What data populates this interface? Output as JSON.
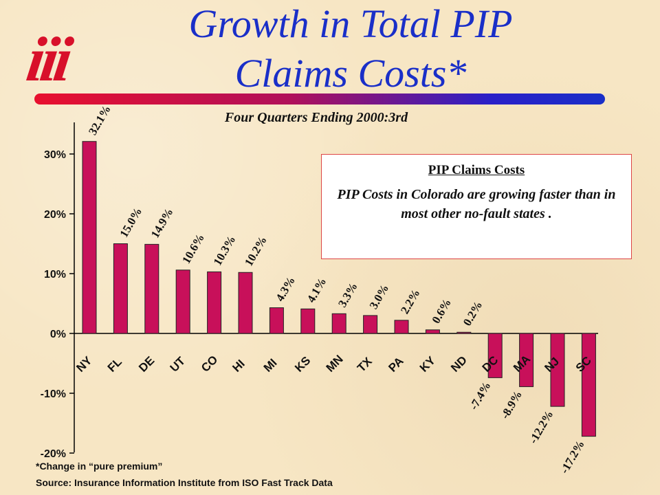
{
  "logo": {
    "text": "iii"
  },
  "title": {
    "line1": "Growth in Total PIP",
    "line2": "Claims Costs*"
  },
  "colors": {
    "bar": "#c8105a",
    "title": "#1a2fc8",
    "logo": "#d8102a",
    "background": "#f7e6c4"
  },
  "callout": {
    "heading": "PIP Claims Costs",
    "body": "PIP Costs in Colorado are growing faster than in most other no-fault states ."
  },
  "footnote": "*Change in “pure premium”",
  "source": "Source:  Insurance Information Institute from ISO Fast Track Data",
  "chart_data": {
    "type": "bar",
    "title": "Four Quarters Ending 2000:3rd",
    "xlabel": "",
    "ylabel": "",
    "categories": [
      "NY",
      "FL",
      "DE",
      "UT",
      "CO",
      "HI",
      "MI",
      "KS",
      "MN",
      "TX",
      "PA",
      "KY",
      "ND",
      "DC",
      "MA",
      "NJ",
      "SC"
    ],
    "values": [
      32.1,
      15.0,
      14.9,
      10.6,
      10.3,
      10.2,
      4.3,
      4.1,
      3.3,
      3.0,
      2.2,
      0.6,
      0.2,
      -7.4,
      -8.9,
      -12.2,
      -17.2
    ],
    "value_labels": [
      "32.1%",
      "15.0%",
      "14.9%",
      "10.6%",
      "10.3%",
      "10.2%",
      "4.3%",
      "4.1%",
      "3.3%",
      "3.0%",
      "2.2%",
      "0.6%",
      "0.2%",
      "-7.4%",
      "-8.9%",
      "-12.2%",
      "-17.2%"
    ],
    "ylim": [
      -20,
      35
    ],
    "y_ticks": [
      30,
      20,
      10,
      0,
      -10,
      -20
    ],
    "y_tick_labels": [
      "30%",
      "20%",
      "10%",
      "0%",
      "-10%",
      "-20%"
    ],
    "grid": false,
    "legend": "none"
  }
}
